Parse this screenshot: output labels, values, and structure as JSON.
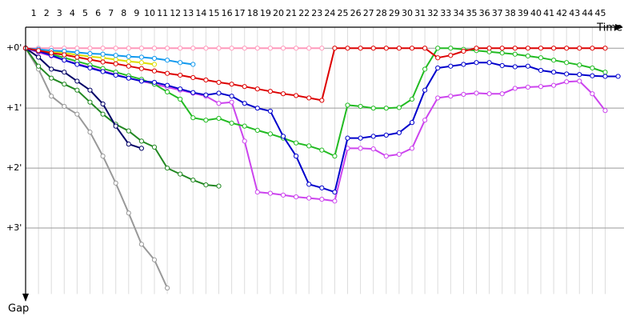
{
  "chart_data": {
    "type": "line",
    "x_label": "Time",
    "y_label": "Gap",
    "x": [
      0,
      1,
      2,
      3,
      4,
      5,
      6,
      7,
      8,
      9,
      10,
      11,
      12,
      13,
      14,
      15,
      16,
      17,
      18,
      19,
      20,
      21,
      22,
      23,
      24,
      25,
      26,
      27,
      28,
      29,
      30,
      31,
      32,
      33,
      34,
      35,
      36,
      37,
      38,
      39,
      40,
      41,
      42,
      43,
      44,
      45,
      46
    ],
    "xlim": [
      0,
      46.5
    ],
    "xticks": [
      1,
      2,
      3,
      4,
      5,
      6,
      7,
      8,
      9,
      10,
      11,
      12,
      13,
      14,
      15,
      16,
      17,
      18,
      19,
      20,
      21,
      22,
      23,
      24,
      25,
      26,
      27,
      28,
      29,
      30,
      31,
      32,
      33,
      34,
      35,
      36,
      37,
      38,
      39,
      40,
      41,
      42,
      43,
      44,
      45
    ],
    "ylim": [
      -0.35,
      4.1
    ],
    "yticks": [
      {
        "value": 0,
        "label": "+0'"
      },
      {
        "value": 1,
        "label": "+1'"
      },
      {
        "value": 2,
        "label": "+2'"
      },
      {
        "value": 3,
        "label": "+3'"
      }
    ],
    "y_inverted": true,
    "grid": true,
    "series": [
      {
        "color": "#ff99bb",
        "values": [
          0,
          0,
          0,
          0,
          0,
          0,
          0,
          0,
          0,
          0,
          0,
          0,
          0,
          0,
          0,
          0,
          0,
          0,
          0,
          0,
          0,
          0,
          0,
          0,
          null,
          null,
          null,
          null,
          null,
          null,
          null,
          null,
          null,
          null,
          null,
          null,
          null,
          null,
          null,
          null,
          null,
          null,
          null,
          null,
          null,
          null,
          null
        ]
      },
      {
        "color": "#999999",
        "values": [
          0,
          0.35,
          0.8,
          0.97,
          1.1,
          1.4,
          1.8,
          2.25,
          2.75,
          3.27,
          3.53,
          4.0,
          null,
          null,
          null,
          null,
          null,
          null,
          null,
          null,
          null,
          null,
          null,
          null,
          null,
          null,
          null,
          null,
          null,
          null,
          null,
          null,
          null,
          null,
          null,
          null,
          null,
          null,
          null,
          null,
          null,
          null,
          null,
          null,
          null,
          null,
          null
        ]
      },
      {
        "color": "#228822",
        "values": [
          0,
          0.3,
          0.5,
          0.6,
          0.7,
          0.9,
          1.1,
          1.27,
          1.38,
          1.55,
          1.65,
          2.0,
          2.1,
          2.2,
          2.28,
          2.3,
          null,
          null,
          null,
          null,
          null,
          null,
          null,
          null,
          null,
          null,
          null,
          null,
          null,
          null,
          null,
          null,
          null,
          null,
          null,
          null,
          null,
          null,
          null,
          null,
          null,
          null,
          null,
          null,
          null,
          null,
          null
        ]
      },
      {
        "color": "#000066",
        "values": [
          0,
          0.15,
          0.35,
          0.4,
          0.55,
          0.7,
          0.93,
          1.3,
          1.6,
          1.67,
          null,
          null,
          null,
          null,
          null,
          null,
          null,
          null,
          null,
          null,
          null,
          null,
          null,
          null,
          null,
          null,
          null,
          null,
          null,
          null,
          null,
          null,
          null,
          null,
          null,
          null,
          null,
          null,
          null,
          null,
          null,
          null,
          null,
          null,
          null,
          null,
          null
        ]
      },
      {
        "color": "#dddd00",
        "values": [
          0,
          0.03,
          0.05,
          0.08,
          0.11,
          0.14,
          0.16,
          0.19,
          0.22,
          0.24,
          0.27,
          null,
          null,
          null,
          null,
          null,
          null,
          null,
          null,
          null,
          null,
          null,
          null,
          null,
          null,
          null,
          null,
          null,
          null,
          null,
          null,
          null,
          null,
          null,
          null,
          null,
          null,
          null,
          null,
          null,
          null,
          null,
          null,
          null,
          null,
          null,
          null
        ]
      },
      {
        "color": "#1199ee",
        "values": [
          0,
          0.02,
          0.04,
          0.05,
          0.07,
          0.09,
          0.1,
          0.12,
          0.14,
          0.15,
          0.17,
          0.2,
          0.24,
          0.27,
          null,
          null,
          null,
          null,
          null,
          null,
          null,
          null,
          null,
          null,
          null,
          null,
          null,
          null,
          null,
          null,
          null,
          null,
          null,
          null,
          null,
          null,
          null,
          null,
          null,
          null,
          null,
          null,
          null,
          null,
          null,
          null,
          null
        ]
      },
      {
        "color": "#cc44ee",
        "values": [
          0,
          0.07,
          0.13,
          0.2,
          0.26,
          0.32,
          0.38,
          0.44,
          0.5,
          0.55,
          0.6,
          0.65,
          0.7,
          0.75,
          0.8,
          0.92,
          0.9,
          1.55,
          2.4,
          2.42,
          2.45,
          2.48,
          2.5,
          2.52,
          2.55,
          1.67,
          1.67,
          1.68,
          1.8,
          1.77,
          1.67,
          1.2,
          0.83,
          0.8,
          0.77,
          0.75,
          0.76,
          0.76,
          0.67,
          0.65,
          0.64,
          0.62,
          0.56,
          0.55,
          0.76,
          1.04,
          null
        ]
      },
      {
        "color": "#22bb22",
        "values": [
          0,
          0.05,
          0.1,
          0.16,
          0.22,
          0.28,
          0.34,
          0.4,
          0.46,
          0.52,
          0.6,
          0.73,
          0.85,
          1.16,
          1.2,
          1.17,
          1.25,
          1.3,
          1.37,
          1.43,
          1.5,
          1.58,
          1.63,
          1.7,
          1.8,
          0.95,
          0.97,
          1.0,
          1.0,
          0.99,
          0.85,
          0.35,
          0,
          0,
          0.02,
          0.04,
          0.06,
          0.08,
          0.1,
          0.13,
          0.16,
          0.2,
          0.24,
          0.28,
          0.33,
          0.4,
          null
        ]
      },
      {
        "color": "#0000cc",
        "values": [
          0,
          0.05,
          0.12,
          0.2,
          0.27,
          0.33,
          0.39,
          0.45,
          0.5,
          0.55,
          0.57,
          0.62,
          0.68,
          0.74,
          0.78,
          0.75,
          0.8,
          0.92,
          1.0,
          1.05,
          1.47,
          1.8,
          2.27,
          2.33,
          2.4,
          1.5,
          1.5,
          1.47,
          1.45,
          1.41,
          1.24,
          0.7,
          0.33,
          0.3,
          0.27,
          0.24,
          0.24,
          0.29,
          0.31,
          0.3,
          0.37,
          0.4,
          0.43,
          0.44,
          0.46,
          0.47,
          0.47
        ]
      },
      {
        "color": "#dd0000",
        "values": [
          0,
          0.04,
          0.08,
          0.11,
          0.15,
          0.19,
          0.23,
          0.26,
          0.3,
          0.34,
          0.38,
          0.42,
          0.45,
          0.49,
          0.53,
          0.57,
          0.6,
          0.64,
          0.68,
          0.72,
          0.76,
          0.79,
          0.83,
          0.87,
          0,
          0,
          0,
          0,
          0,
          0,
          0,
          0,
          0.16,
          0.12,
          0.05,
          0,
          0,
          0,
          0,
          0,
          0,
          0,
          0,
          0,
          0,
          0,
          null
        ]
      }
    ]
  }
}
